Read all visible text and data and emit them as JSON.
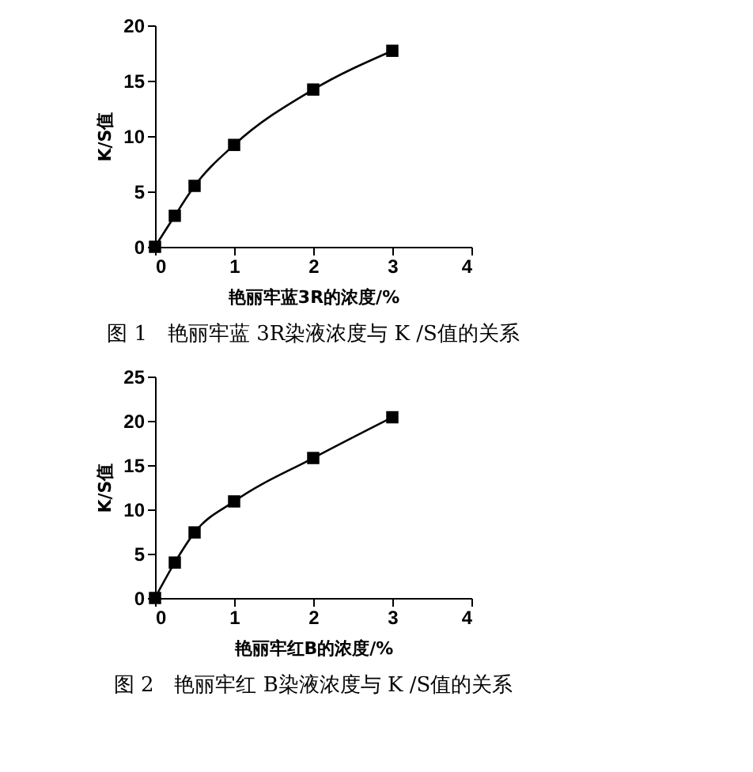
{
  "chart_data": [
    {
      "type": "line",
      "xlabel": "艳丽牢蓝3R的浓度/%",
      "ylabel": "K/S值",
      "annotations": [
        "图 1　艳丽牢蓝 3R染液浓度与 K /S值的关系"
      ],
      "x": [
        0,
        0.25,
        0.5,
        1,
        2,
        3
      ],
      "series": [
        {
          "color": "#000000",
          "values": [
            0,
            2.8,
            5.5,
            9.2,
            14.2,
            17.7
          ]
        }
      ],
      "xlim": [
        0,
        4
      ],
      "xticks": [
        0,
        1,
        2,
        3,
        4
      ],
      "ylim": [
        0,
        20
      ],
      "yticks": [
        0,
        5,
        10,
        15,
        20
      ],
      "marker": "square",
      "line_style": "solid",
      "grid": false,
      "legend": false
    },
    {
      "type": "line",
      "xlabel": "艳丽牢红B的浓度/%",
      "ylabel": "K/S值",
      "annotations": [
        "图 2　艳丽牢红 B染液浓度与 K /S值的关系"
      ],
      "x": [
        0,
        0.25,
        0.5,
        1,
        2,
        3
      ],
      "series": [
        {
          "color": "#000000",
          "values": [
            0,
            4,
            7.4,
            10.9,
            15.8,
            20.4
          ]
        }
      ],
      "xlim": [
        0,
        4
      ],
      "xticks": [
        0,
        1,
        2,
        3,
        4
      ],
      "ylim": [
        0,
        25
      ],
      "yticks": [
        0,
        5,
        10,
        15,
        20,
        25
      ],
      "marker": "square",
      "line_style": "solid",
      "grid": false,
      "legend": false
    }
  ]
}
